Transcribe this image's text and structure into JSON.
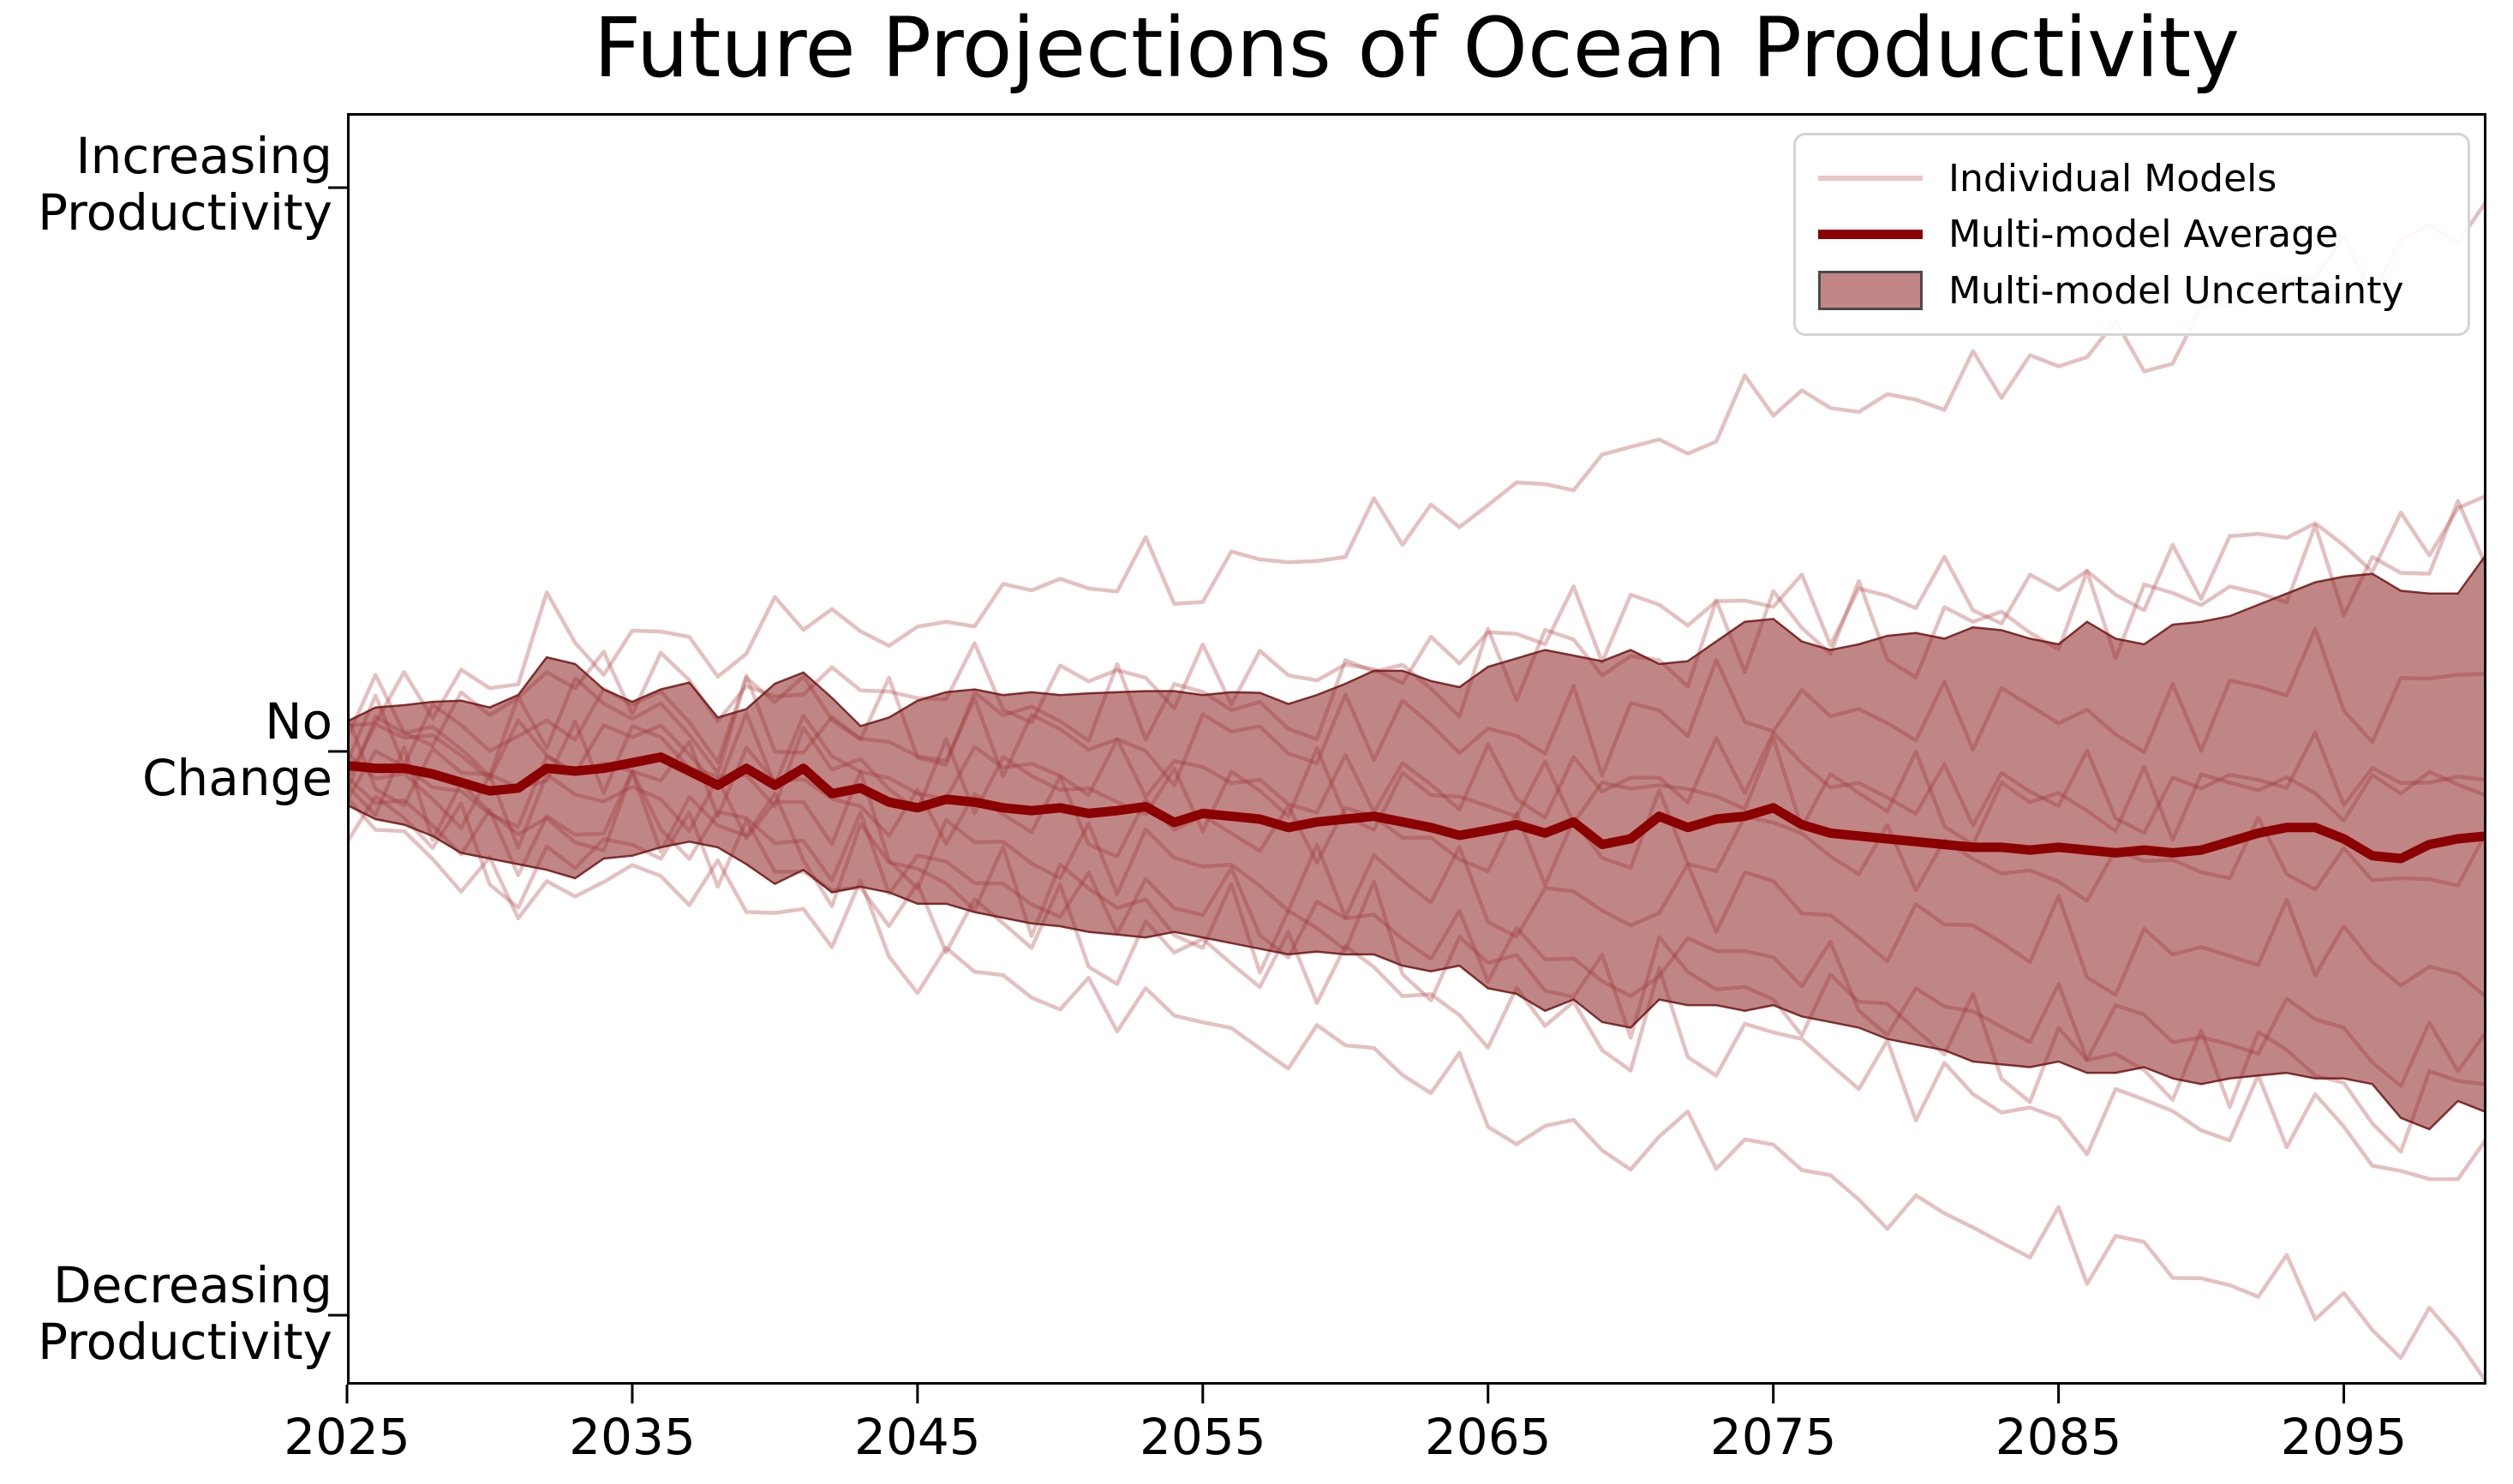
{
  "figure": {
    "title": "Future Projections of Ocean Productivity",
    "background": "#ffffff"
  },
  "legend": {
    "items": [
      {
        "label": "Individual Models",
        "swatch": "thin-line",
        "color": "#e9c7c7"
      },
      {
        "label": "Multi-model Average",
        "swatch": "thick-line",
        "color": "#8b0000"
      },
      {
        "label": "Multi-model Uncertainty",
        "swatch": "patch",
        "fill": "#c28686",
        "edge": "#4a4a4a"
      }
    ]
  },
  "axes": {
    "x_ticks": [
      2025,
      2035,
      2045,
      2055,
      2065,
      2075,
      2085,
      2095
    ],
    "y_ticks": [
      {
        "value": 1,
        "lines": [
          "Increasing",
          "Productivity"
        ]
      },
      {
        "value": 0,
        "lines": [
          "No",
          "Change"
        ]
      },
      {
        "value": -1,
        "lines": [
          "Decreasing",
          "Productivity"
        ]
      }
    ],
    "xlim": [
      2025,
      2100
    ],
    "ylim": [
      -1.12,
      1.13
    ],
    "grid": false
  },
  "style": {
    "mean_color": "#8b0000",
    "mean_width": 11,
    "band_fill": "rgba(140,35,35,0.55)",
    "band_edge": "rgba(118,28,28,0.9)",
    "band_edge_width": 2.5,
    "model_color": "rgba(185,90,90,0.38)",
    "model_width": 4.5,
    "axis_color": "#000000",
    "axis_width": 3,
    "tick_length": 22
  },
  "chart_data": {
    "type": "line",
    "title": "Future Projections of Ocean Productivity",
    "xlabel": "",
    "ylabel": "",
    "legend_position": "upper right",
    "x": [
      2025,
      2026,
      2027,
      2028,
      2029,
      2030,
      2031,
      2032,
      2033,
      2034,
      2035,
      2036,
      2037,
      2038,
      2039,
      2040,
      2041,
      2042,
      2043,
      2044,
      2045,
      2046,
      2047,
      2048,
      2049,
      2050,
      2051,
      2052,
      2053,
      2054,
      2055,
      2056,
      2057,
      2058,
      2059,
      2060,
      2061,
      2062,
      2063,
      2064,
      2065,
      2066,
      2067,
      2068,
      2069,
      2070,
      2071,
      2072,
      2073,
      2074,
      2075,
      2076,
      2077,
      2078,
      2079,
      2080,
      2081,
      2082,
      2083,
      2084,
      2085,
      2086,
      2087,
      2088,
      2089,
      2090,
      2091,
      2092,
      2093,
      2094,
      2095,
      2096,
      2097,
      2098,
      2099,
      2100
    ],
    "series": [
      {
        "name": "Multi-model Average",
        "values": [
          -0.025,
          -0.03,
          -0.03,
          -0.04,
          -0.055,
          -0.07,
          -0.065,
          -0.03,
          -0.035,
          -0.03,
          -0.02,
          -0.01,
          -0.035,
          -0.06,
          -0.03,
          -0.06,
          -0.03,
          -0.075,
          -0.065,
          -0.09,
          -0.1,
          -0.085,
          -0.09,
          -0.1,
          -0.105,
          -0.1,
          -0.11,
          -0.105,
          -0.098,
          -0.126,
          -0.11,
          -0.115,
          -0.12,
          -0.135,
          -0.125,
          -0.12,
          -0.115,
          -0.125,
          -0.135,
          -0.149,
          -0.14,
          -0.13,
          -0.145,
          -0.125,
          -0.165,
          -0.155,
          -0.115,
          -0.135,
          -0.12,
          -0.115,
          -0.1,
          -0.13,
          -0.145,
          -0.15,
          -0.155,
          -0.16,
          -0.165,
          -0.17,
          -0.17,
          -0.175,
          -0.17,
          -0.175,
          -0.18,
          -0.175,
          -0.18,
          -0.175,
          -0.16,
          -0.145,
          -0.135,
          -0.135,
          -0.155,
          -0.185,
          -0.19,
          -0.165,
          -0.155,
          -0.15
        ]
      }
    ],
    "band": {
      "name": "Multi-model Uncertainty",
      "upper": [
        0.053,
        0.078,
        0.082,
        0.088,
        0.09,
        0.078,
        0.1,
        0.167,
        0.155,
        0.11,
        0.088,
        0.11,
        0.122,
        0.06,
        0.075,
        0.12,
        0.14,
        0.095,
        0.045,
        0.06,
        0.09,
        0.105,
        0.11,
        0.1,
        0.105,
        0.1,
        0.103,
        0.105,
        0.107,
        0.107,
        0.1,
        0.105,
        0.104,
        0.084,
        0.1,
        0.12,
        0.143,
        0.143,
        0.125,
        0.114,
        0.15,
        0.165,
        0.18,
        0.17,
        0.16,
        0.18,
        0.155,
        0.16,
        0.195,
        0.23,
        0.235,
        0.195,
        0.18,
        0.19,
        0.205,
        0.21,
        0.2,
        0.22,
        0.215,
        0.2,
        0.19,
        0.23,
        0.2,
        0.19,
        0.225,
        0.23,
        0.24,
        0.26,
        0.28,
        0.3,
        0.31,
        0.315,
        0.285,
        0.28,
        0.28,
        0.35
      ],
      "lower": [
        -0.095,
        -0.12,
        -0.13,
        -0.15,
        -0.18,
        -0.19,
        -0.2,
        -0.21,
        -0.225,
        -0.19,
        -0.185,
        -0.17,
        -0.16,
        -0.17,
        -0.2,
        -0.235,
        -0.21,
        -0.25,
        -0.24,
        -0.25,
        -0.27,
        -0.27,
        -0.285,
        -0.295,
        -0.305,
        -0.31,
        -0.32,
        -0.325,
        -0.33,
        -0.32,
        -0.33,
        -0.34,
        -0.35,
        -0.36,
        -0.355,
        -0.36,
        -0.36,
        -0.38,
        -0.39,
        -0.38,
        -0.42,
        -0.43,
        -0.46,
        -0.44,
        -0.48,
        -0.49,
        -0.44,
        -0.45,
        -0.45,
        -0.46,
        -0.45,
        -0.47,
        -0.48,
        -0.49,
        -0.51,
        -0.52,
        -0.53,
        -0.55,
        -0.555,
        -0.56,
        -0.55,
        -0.57,
        -0.57,
        -0.56,
        -0.58,
        -0.59,
        -0.58,
        -0.575,
        -0.57,
        -0.58,
        -0.58,
        -0.59,
        -0.65,
        -0.67,
        -0.62,
        -0.64
      ]
    },
    "individual_models": {
      "name": "Individual Models",
      "count": 12,
      "noise_table": [
        0.236,
        -0.528,
        0.708,
        -0.056,
        -0.82,
        0.416,
        -0.348,
        0.888,
        0.124,
        -0.64,
        0.596,
        -0.168,
        -0.932,
        0.304,
        -0.458,
        0.778,
        0.014,
        -0.75,
        0.486,
        -0.278,
        0.958,
        0.194,
        -0.57,
        0.666,
        -0.098,
        -0.862,
        0.374,
        -0.39,
        0.846,
        0.082,
        -0.682,
        0.554,
        -0.21,
        -0.974,
        0.262,
        -0.502,
        0.734,
        -0.03,
        -0.794,
        0.442,
        -0.322,
        0.914,
        0.15,
        -0.614,
        0.622,
        -0.142,
        -0.904,
        0.332,
        -0.432,
        0.804,
        0.04,
        -0.724,
        0.512,
        -0.252,
        0.984,
        0.22,
        -0.544,
        0.692,
        -0.072,
        -0.836,
        0.4,
        -0.364,
        0.872,
        0.108,
        -0.656,
        0.58,
        -0.184,
        -0.948,
        0.288,
        -0.474,
        0.762,
        -0.002,
        -0.766,
        0.47,
        -0.294,
        0.942
      ],
      "params": [
        {
          "spread": 1.15,
          "amp": 0.05,
          "offset": 3,
          "drift": 0.55
        },
        {
          "spread": 0.9,
          "amp": 0.06,
          "offset": 9,
          "drift": 0.15
        },
        {
          "spread": 0.6,
          "amp": 0.07,
          "offset": 17,
          "drift": 0.0
        },
        {
          "spread": 0.35,
          "amp": 0.06,
          "offset": 25,
          "drift": -0.05
        },
        {
          "spread": 0.1,
          "amp": 0.07,
          "offset": 31,
          "drift": 0.05
        },
        {
          "spread": -0.1,
          "amp": 0.06,
          "offset": 40,
          "drift": 0.0
        },
        {
          "spread": -0.35,
          "amp": 0.07,
          "offset": 47,
          "drift": -0.05
        },
        {
          "spread": -0.6,
          "amp": 0.06,
          "offset": 55,
          "drift": -0.1
        },
        {
          "spread": -0.9,
          "amp": 0.07,
          "offset": 61,
          "drift": -0.15
        },
        {
          "spread": -1.15,
          "amp": 0.05,
          "offset": 68,
          "drift": -0.35
        },
        {
          "spread": 0.45,
          "amp": 0.08,
          "offset": 12,
          "drift": 0.3
        },
        {
          "spread": -0.45,
          "amp": 0.08,
          "offset": 50,
          "drift": -0.25
        }
      ]
    }
  }
}
